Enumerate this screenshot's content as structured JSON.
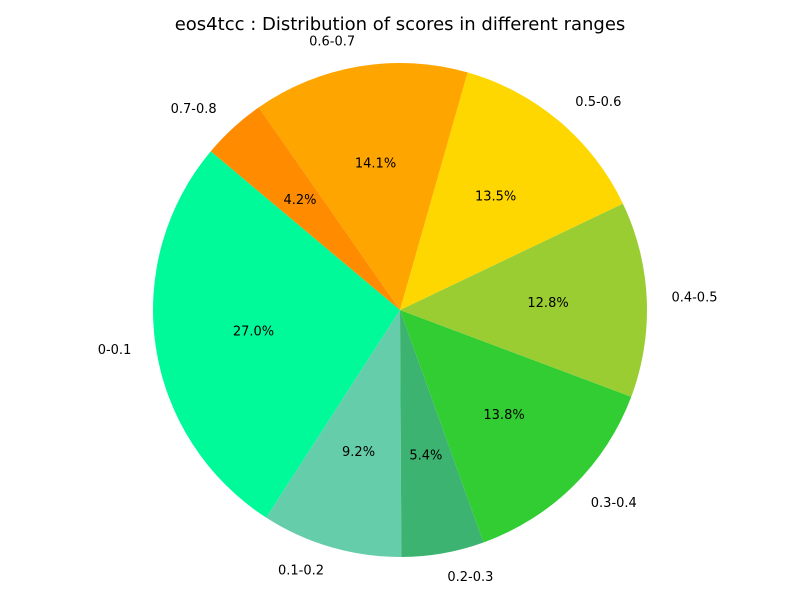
{
  "chart_data": {
    "type": "pie",
    "title": "eos4tcc : Distribution of scores in different ranges",
    "labels": [
      "0-0.1",
      "0.1-0.2",
      "0.2-0.3",
      "0.3-0.4",
      "0.4-0.5",
      "0.5-0.6",
      "0.6-0.7",
      "0.7-0.8"
    ],
    "values": [
      27.0,
      9.2,
      5.4,
      13.8,
      12.8,
      13.5,
      14.1,
      4.2
    ],
    "percent_labels": [
      "27.0%",
      "9.2%",
      "5.4%",
      "13.8%",
      "12.8%",
      "13.5%",
      "14.1%",
      "4.2%"
    ],
    "colors": [
      "#00fa9a",
      "#66cdaa",
      "#3cb371",
      "#32cd32",
      "#9acd32",
      "#ffd700",
      "#ffa500",
      "#ff8c00"
    ],
    "start_angle_deg": 140,
    "direction": "counterclockwise",
    "legend": "none"
  }
}
